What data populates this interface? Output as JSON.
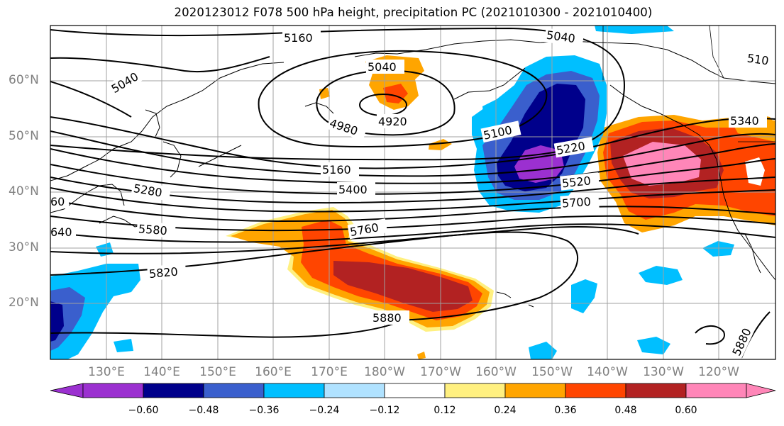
{
  "title": "2020123012 F078 500 hPa height, precipitation PC (2021010300 - 2021010400)",
  "lat_labels": [
    "60°N",
    "50°N",
    "40°N",
    "30°N",
    "20°N"
  ],
  "lon_labels": [
    "130°E",
    "140°E",
    "150°E",
    "160°E",
    "170°E",
    "180°W",
    "170°W",
    "160°W",
    "150°W",
    "140°W",
    "130°W",
    "120°W"
  ],
  "colorbar": {
    "ticks": [
      "−0.60",
      "−0.48",
      "−0.36",
      "−0.24",
      "−0.12",
      "0.12",
      "0.24",
      "0.36",
      "0.48",
      "0.60"
    ],
    "colors": [
      "#9b30d0",
      "#00008b",
      "#3a5fcd",
      "#00bfff",
      "#b0e2ff",
      "#ffffff",
      "#fff080",
      "#ffa500",
      "#ff4500",
      "#b22222",
      "#ff86b8"
    ]
  },
  "contour_labels": [
    "5160",
    "5040",
    "5040",
    "5040",
    "510",
    "4920",
    "4980",
    "5100",
    "5220",
    "5160",
    "5280",
    "5400",
    "5520",
    "5340",
    "5700",
    "60",
    "640",
    "5580",
    "5760",
    "5820",
    "5880",
    "5880"
  ],
  "colors": {
    "accent": "#000000",
    "axis_label": "#808080"
  }
}
